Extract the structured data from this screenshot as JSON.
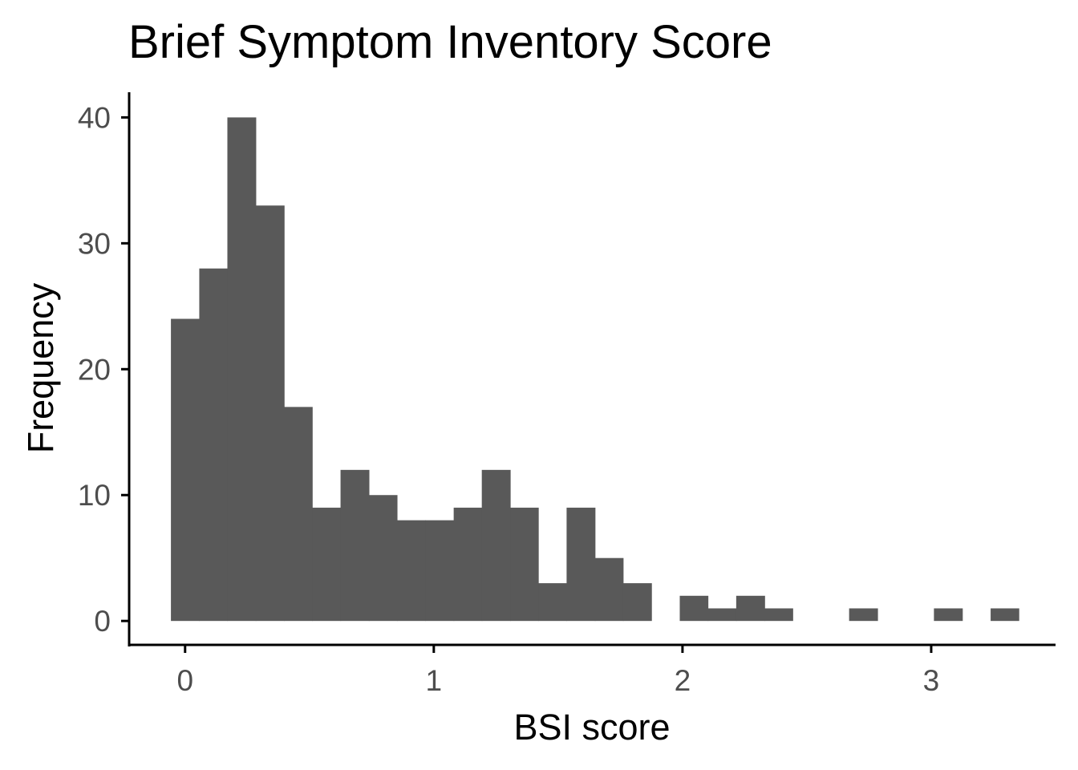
{
  "chart_data": {
    "type": "bar",
    "title": "Brief Symptom Inventory Score",
    "xlabel": "BSI score",
    "ylabel": "Frequency",
    "xlim": [
      -0.225,
      3.5
    ],
    "ylim": [
      -1.9,
      42
    ],
    "x_ticks": [
      0,
      1,
      2,
      3
    ],
    "x_tick_labels": [
      "0",
      "1",
      "2",
      "3"
    ],
    "y_ticks": [
      0,
      10,
      20,
      30,
      40
    ],
    "y_tick_labels": [
      "0",
      "10",
      "20",
      "30",
      "40"
    ],
    "bin_width": 0.1137,
    "bins": [
      {
        "x0": -0.057,
        "x1": 0.057,
        "count": 24
      },
      {
        "x0": 0.057,
        "x1": 0.17,
        "count": 28
      },
      {
        "x0": 0.17,
        "x1": 0.284,
        "count": 40
      },
      {
        "x0": 0.284,
        "x1": 0.398,
        "count": 33
      },
      {
        "x0": 0.398,
        "x1": 0.511,
        "count": 17
      },
      {
        "x0": 0.511,
        "x1": 0.625,
        "count": 9
      },
      {
        "x0": 0.625,
        "x1": 0.739,
        "count": 12
      },
      {
        "x0": 0.739,
        "x1": 0.852,
        "count": 10
      },
      {
        "x0": 0.852,
        "x1": 0.966,
        "count": 8
      },
      {
        "x0": 0.966,
        "x1": 1.08,
        "count": 8
      },
      {
        "x0": 1.08,
        "x1": 1.193,
        "count": 9
      },
      {
        "x0": 1.193,
        "x1": 1.307,
        "count": 12
      },
      {
        "x0": 1.307,
        "x1": 1.42,
        "count": 9
      },
      {
        "x0": 1.42,
        "x1": 1.534,
        "count": 3
      },
      {
        "x0": 1.534,
        "x1": 1.648,
        "count": 9
      },
      {
        "x0": 1.648,
        "x1": 1.761,
        "count": 5
      },
      {
        "x0": 1.761,
        "x1": 1.875,
        "count": 3
      },
      {
        "x0": 1.875,
        "x1": 1.989,
        "count": 0
      },
      {
        "x0": 1.989,
        "x1": 2.102,
        "count": 2
      },
      {
        "x0": 2.102,
        "x1": 2.216,
        "count": 1
      },
      {
        "x0": 2.216,
        "x1": 2.33,
        "count": 2
      },
      {
        "x0": 2.33,
        "x1": 2.443,
        "count": 1
      },
      {
        "x0": 2.443,
        "x1": 2.557,
        "count": 0
      },
      {
        "x0": 2.557,
        "x1": 2.67,
        "count": 0
      },
      {
        "x0": 2.67,
        "x1": 2.784,
        "count": 1
      },
      {
        "x0": 2.784,
        "x1": 2.898,
        "count": 0
      },
      {
        "x0": 2.898,
        "x1": 3.011,
        "count": 0
      },
      {
        "x0": 3.011,
        "x1": 3.125,
        "count": 1
      },
      {
        "x0": 3.125,
        "x1": 3.239,
        "count": 0
      },
      {
        "x0": 3.239,
        "x1": 3.352,
        "count": 1
      }
    ],
    "bar_color": "#595959",
    "axis_color": "#000000",
    "tick_label_color": "#4d4d4d",
    "grid": false,
    "legend": "none"
  }
}
